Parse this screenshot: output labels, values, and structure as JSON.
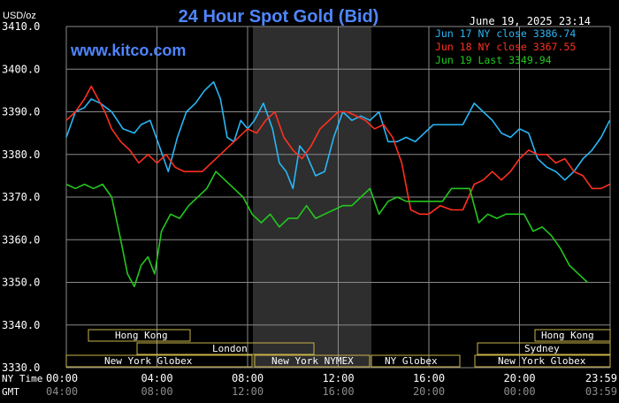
{
  "header": {
    "unit": "USD/oz",
    "title": "24 Hour Spot Gold (Bid)",
    "timestamp": "June 19, 2025 23:14",
    "watermark": "www.kitco.com"
  },
  "legend": [
    {
      "text": "Jun 17 NY close 3386.74",
      "color": "#29b6f6"
    },
    {
      "text": "Jun 18 NY close 3367.55",
      "color": "#ff3020"
    },
    {
      "text": "Jun 19 Last 3349.94",
      "color": "#22c81e"
    }
  ],
  "time_rows": {
    "ny_label": "NY Time",
    "gmt_label": "GMT",
    "ny_ticks": [
      "00:00",
      "04:00",
      "08:00",
      "12:00",
      "16:00",
      "20:00",
      "23:59"
    ],
    "gmt_ticks": [
      "04:00",
      "08:00",
      "12:00",
      "16:00",
      "20:00",
      "00:00",
      "03:59"
    ]
  },
  "sessions": [
    {
      "label": "Hong Kong"
    },
    {
      "label": "London"
    },
    {
      "label": "New York Globex"
    },
    {
      "label": "New York NYMEX"
    },
    {
      "label": "NY Globex"
    },
    {
      "label": "Sydney"
    },
    {
      "label": "Hong Kong"
    },
    {
      "label": "New York Globex"
    }
  ],
  "colors": {
    "background": "#000000",
    "grid": "#8a8a8a",
    "shade": "#2e2e2e",
    "title": "#4f86ff",
    "text": "#ffffff",
    "session_border": "#c9b34a"
  },
  "chart_data": {
    "type": "line",
    "title": "24 Hour Spot Gold (Bid)",
    "ylabel": "USD/oz",
    "xlabel": "NY Time",
    "ylim": [
      3330,
      3410
    ],
    "yticks": [
      "3410.0",
      "3400.0",
      "3390.0",
      "3380.0",
      "3370.0",
      "3360.0",
      "3350.0",
      "3340.0",
      "3330.0"
    ],
    "x_range_hours": [
      0,
      24
    ],
    "grid": true,
    "legend_position": "top-right",
    "series": [
      {
        "name": "Jun 17 NY close 3386.74",
        "color": "#29b6f6",
        "x": [
          0,
          0.4,
          0.8,
          1.1,
          1.5,
          2.0,
          2.5,
          3.0,
          3.3,
          3.7,
          4.1,
          4.5,
          4.9,
          5.3,
          5.7,
          6.1,
          6.5,
          6.8,
          7.1,
          7.4,
          7.7,
          8.0,
          8.3,
          8.7,
          9.1,
          9.4,
          9.7,
          10.0,
          10.3,
          10.6,
          11.0,
          11.4,
          11.8,
          12.2,
          12.6,
          13.0,
          13.4,
          13.8,
          14.2,
          14.6,
          15.0,
          15.4,
          15.8,
          16.2,
          16.6,
          17.0,
          17.5,
          18.0,
          18.4,
          18.8,
          19.2,
          19.6,
          20.0,
          20.4,
          20.8,
          21.2,
          21.6,
          22.0,
          22.4,
          22.8,
          23.2,
          23.6,
          23.98
        ],
        "y": [
          3384,
          3390,
          3391,
          3393,
          3392,
          3390,
          3386,
          3385,
          3387,
          3388,
          3382,
          3376,
          3384,
          3390,
          3392,
          3395,
          3397,
          3393,
          3384,
          3383,
          3388,
          3386,
          3388,
          3392,
          3386,
          3378,
          3376,
          3372,
          3382,
          3380,
          3375,
          3376,
          3384,
          3390,
          3388,
          3389,
          3388,
          3390,
          3383,
          3383,
          3384,
          3383,
          3385,
          3387,
          3387,
          3387,
          3387,
          3392,
          3390,
          3388,
          3385,
          3384,
          3386,
          3385,
          3379,
          3377,
          3376,
          3374,
          3376,
          3379,
          3381,
          3384,
          3388
        ]
      },
      {
        "name": "Jun 18 NY close 3367.55",
        "color": "#ff3020",
        "x": [
          0,
          0.4,
          0.8,
          1.1,
          1.4,
          1.7,
          2.0,
          2.4,
          2.8,
          3.2,
          3.6,
          4.0,
          4.4,
          4.8,
          5.2,
          5.6,
          6.0,
          6.4,
          6.8,
          7.2,
          7.6,
          8.0,
          8.4,
          8.8,
          9.2,
          9.6,
          10.0,
          10.4,
          10.8,
          11.2,
          11.6,
          12.0,
          12.4,
          12.8,
          13.2,
          13.6,
          14.0,
          14.4,
          14.8,
          15.2,
          15.6,
          16.0,
          16.5,
          17.0,
          17.5,
          18.0,
          18.4,
          18.8,
          19.2,
          19.6,
          20.0,
          20.4,
          20.8,
          21.2,
          21.6,
          22.0,
          22.4,
          22.8,
          23.2,
          23.6,
          23.98
        ],
        "y": [
          3388,
          3390,
          3393,
          3396,
          3393,
          3390,
          3386,
          3383,
          3381,
          3378,
          3380,
          3378,
          3380,
          3377,
          3376,
          3376,
          3376,
          3378,
          3380,
          3382,
          3384,
          3386,
          3385,
          3388,
          3390,
          3384,
          3381,
          3379,
          3382,
          3386,
          3388,
          3390,
          3390,
          3389,
          3388,
          3386,
          3387,
          3384,
          3378,
          3367,
          3366,
          3366,
          3368,
          3367,
          3367,
          3373,
          3374,
          3376,
          3374,
          3376,
          3379,
          3381,
          3380,
          3380,
          3378,
          3379,
          3376,
          3375,
          3372,
          3372,
          3373
        ]
      },
      {
        "name": "Jun 19 Last 3349.94",
        "color": "#22c81e",
        "x": [
          0,
          0.4,
          0.8,
          1.2,
          1.6,
          2.0,
          2.4,
          2.7,
          3.0,
          3.3,
          3.6,
          3.9,
          4.2,
          4.6,
          5.0,
          5.4,
          5.8,
          6.2,
          6.6,
          7.0,
          7.4,
          7.8,
          8.2,
          8.6,
          9.0,
          9.4,
          9.8,
          10.2,
          10.6,
          11.0,
          11.4,
          11.8,
          12.2,
          12.6,
          13.0,
          13.4,
          13.8,
          14.2,
          14.6,
          15.0,
          15.4,
          15.8,
          16.2,
          16.6,
          17.0,
          17.4,
          17.8,
          18.2,
          18.6,
          19.0,
          19.4,
          19.8,
          20.2,
          20.6,
          21.0,
          21.4,
          21.8,
          22.2,
          22.6,
          23.0
        ],
        "y": [
          3373,
          3372,
          3373,
          3372,
          3373,
          3370,
          3360,
          3352,
          3349,
          3354,
          3356,
          3352,
          3362,
          3366,
          3365,
          3368,
          3370,
          3372,
          3376,
          3374,
          3372,
          3370,
          3366,
          3364,
          3366,
          3363,
          3365,
          3365,
          3368,
          3365,
          3366,
          3367,
          3368,
          3368,
          3370,
          3372,
          3366,
          3369,
          3370,
          3369,
          3369,
          3369,
          3369,
          3369,
          3372,
          3372,
          3372,
          3364,
          3366,
          3365,
          3366,
          3366,
          3366,
          3362,
          3363,
          3361,
          3358,
          3354,
          3352,
          3350
        ]
      }
    ]
  }
}
